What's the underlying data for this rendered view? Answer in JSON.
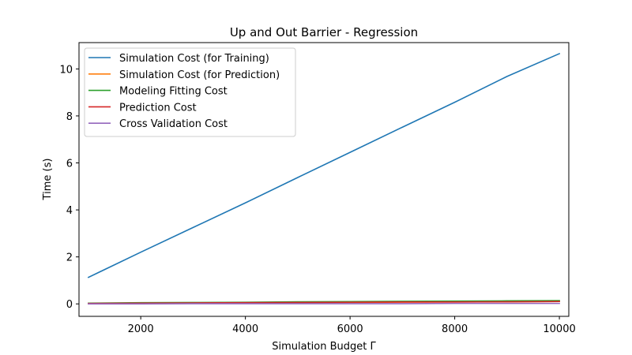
{
  "chart_data": {
    "type": "line",
    "title": "Up and Out Barrier - Regression",
    "xlabel": "Simulation Budget Γ",
    "ylabel": "Time (s)",
    "xlim": [
      820,
      10180
    ],
    "ylim": [
      -0.53,
      11.12
    ],
    "xticks": [
      2000,
      4000,
      6000,
      8000,
      10000
    ],
    "yticks": [
      0,
      2,
      4,
      6,
      8,
      10
    ],
    "grid": false,
    "legend_position": "top-left",
    "x": [
      1000,
      2000,
      3000,
      4000,
      5000,
      6000,
      7000,
      8000,
      9000,
      10000
    ],
    "series": [
      {
        "name": "Simulation Cost (for Training)",
        "color": "#1f77b4",
        "values": [
          1.13,
          2.2,
          3.25,
          4.3,
          5.38,
          6.45,
          7.52,
          8.58,
          9.68,
          10.65
        ]
      },
      {
        "name": "Simulation Cost (for Prediction)",
        "color": "#ff7f0e",
        "values": [
          0.01,
          0.02,
          0.03,
          0.04,
          0.05,
          0.06,
          0.07,
          0.08,
          0.09,
          0.1
        ]
      },
      {
        "name": "Modeling Fitting Cost",
        "color": "#2ca02c",
        "values": [
          0.03,
          0.05,
          0.06,
          0.07,
          0.09,
          0.1,
          0.11,
          0.12,
          0.13,
          0.14
        ]
      },
      {
        "name": "Prediction Cost",
        "color": "#d62728",
        "values": [
          0.02,
          0.03,
          0.04,
          0.05,
          0.06,
          0.07,
          0.08,
          0.08,
          0.09,
          0.1
        ]
      },
      {
        "name": "Cross Validation Cost",
        "color": "#9467bd",
        "values": [
          0.0,
          0.0,
          0.01,
          0.01,
          0.01,
          0.01,
          0.01,
          0.02,
          0.02,
          0.02
        ]
      }
    ]
  }
}
